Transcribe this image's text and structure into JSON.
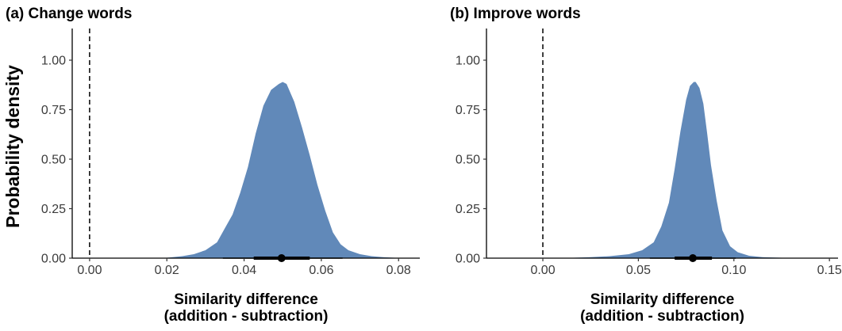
{
  "figure": {
    "ylabel": "Probability density",
    "colors": {
      "density_fill": "#6189b9",
      "interval": "#000000",
      "zero_line": "#000000"
    }
  },
  "chart_data": [
    {
      "type": "area",
      "title": "(a) Change words",
      "xlabel": [
        "Similarity difference",
        "(addition - subtraction)"
      ],
      "ylabel": "Probability density",
      "xlim": [
        -0.0045,
        0.0855
      ],
      "ylim": [
        0,
        1.16
      ],
      "x_ticks": [
        0.0,
        0.02,
        0.04,
        0.06,
        0.08
      ],
      "x_tick_labels": [
        "0.00",
        "0.02",
        "0.04",
        "0.06",
        "0.08"
      ],
      "y_ticks": [
        0.0,
        0.25,
        0.5,
        0.75,
        1.0
      ],
      "y_tick_labels": [
        "0.00",
        "0.25",
        "0.50",
        "0.75",
        "1.00"
      ],
      "reference_line": {
        "x": 0,
        "style": "dashed"
      },
      "density": {
        "x": [
          0.019,
          0.024,
          0.027,
          0.03,
          0.033,
          0.035,
          0.037,
          0.039,
          0.041,
          0.043,
          0.045,
          0.047,
          0.049,
          0.05,
          0.051,
          0.053,
          0.055,
          0.057,
          0.059,
          0.061,
          0.063,
          0.065,
          0.067,
          0.07,
          0.073,
          0.076,
          0.079,
          0.082
        ],
        "y": [
          0.0,
          0.01,
          0.02,
          0.04,
          0.08,
          0.15,
          0.22,
          0.33,
          0.46,
          0.63,
          0.77,
          0.85,
          0.88,
          0.89,
          0.88,
          0.79,
          0.66,
          0.52,
          0.37,
          0.24,
          0.13,
          0.07,
          0.04,
          0.02,
          0.01,
          0.005,
          0.002,
          0.0
        ]
      },
      "point_interval": {
        "point": 0.0497,
        "inner": [
          0.0425,
          0.057
        ],
        "outer": [
          0.0345,
          0.0655
        ]
      }
    },
    {
      "type": "area",
      "title": "(b) Improve words",
      "xlabel": [
        "Similarity difference",
        "(addition - subtraction)"
      ],
      "ylabel": "Probability density",
      "xlim": [
        -0.0295,
        0.1545
      ],
      "ylim": [
        0,
        1.16
      ],
      "x_ticks": [
        0.0,
        0.05,
        0.1,
        0.15
      ],
      "x_tick_labels": [
        "0.00",
        "0.05",
        "0.10",
        "0.15"
      ],
      "y_ticks": [
        0.0,
        0.25,
        0.5,
        0.75,
        1.0
      ],
      "y_tick_labels": [
        "0.00",
        "0.25",
        "0.50",
        "0.75",
        "1.00"
      ],
      "reference_line": {
        "x": 0,
        "style": "dashed"
      },
      "density": {
        "x": [
          0.01,
          0.025,
          0.035,
          0.045,
          0.052,
          0.058,
          0.062,
          0.066,
          0.069,
          0.072,
          0.075,
          0.077,
          0.079,
          0.08,
          0.082,
          0.084,
          0.086,
          0.088,
          0.091,
          0.094,
          0.098,
          0.102,
          0.108,
          0.115,
          0.125,
          0.135
        ],
        "y": [
          0.0,
          0.005,
          0.01,
          0.02,
          0.04,
          0.08,
          0.16,
          0.28,
          0.45,
          0.64,
          0.8,
          0.87,
          0.89,
          0.89,
          0.86,
          0.78,
          0.63,
          0.47,
          0.29,
          0.14,
          0.06,
          0.03,
          0.012,
          0.005,
          0.002,
          0.0
        ]
      },
      "point_interval": {
        "point": 0.0785,
        "inner": [
          0.069,
          0.0885
        ],
        "outer": [
          0.056,
          0.101
        ]
      }
    }
  ]
}
